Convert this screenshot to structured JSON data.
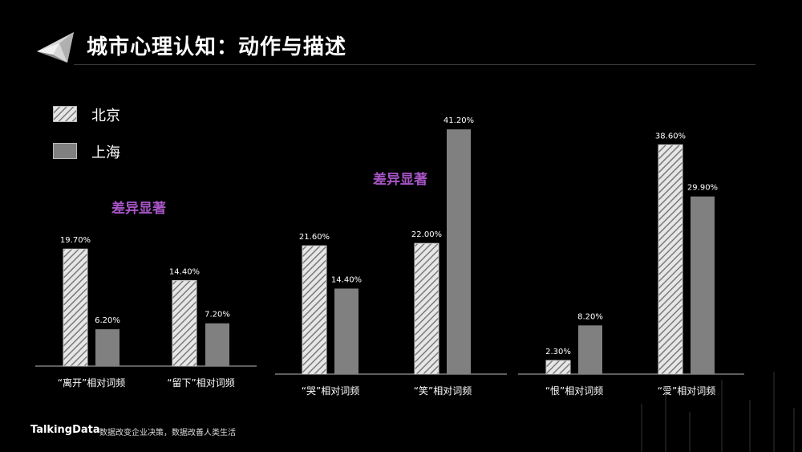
{
  "header": {
    "title": "城市心理认知：动作与描述",
    "logo_icon": "crystal-logo-icon"
  },
  "legend": [
    {
      "label": "北京",
      "pattern": "hatched"
    },
    {
      "label": "上海",
      "pattern": "solid"
    }
  ],
  "colors": {
    "background": "#000000",
    "shanghai_bar": "#808080",
    "hatch_bg": "#e6e6e6",
    "hatch_line": "#7a7a7a",
    "annotation": "#a855c8"
  },
  "chart_data": [
    {
      "type": "bar",
      "categories": [
        "“离开”相对词频",
        "“留下”相对词频"
      ],
      "series": [
        {
          "name": "北京",
          "values": [
            19.7,
            14.4
          ],
          "labels": [
            "19.70%",
            "14.40%"
          ]
        },
        {
          "name": "上海",
          "values": [
            6.2,
            7.2
          ],
          "labels": [
            "6.20%",
            "7.20%"
          ]
        }
      ],
      "annotation": "差异显著",
      "ylim": [
        0,
        45
      ],
      "unit": "%"
    },
    {
      "type": "bar",
      "categories": [
        "“哭”相对词频",
        "“笑”相对词频"
      ],
      "series": [
        {
          "name": "北京",
          "values": [
            21.6,
            22.0
          ],
          "labels": [
            "21.60%",
            "22.00%"
          ]
        },
        {
          "name": "上海",
          "values": [
            14.4,
            41.2
          ],
          "labels": [
            "14.40%",
            "41.20%"
          ]
        }
      ],
      "annotation": "差异显著",
      "ylim": [
        0,
        45
      ],
      "unit": "%"
    },
    {
      "type": "bar",
      "categories": [
        "“恨”相对词频",
        "“爱”相对词频"
      ],
      "series": [
        {
          "name": "北京",
          "values": [
            2.3,
            38.6
          ],
          "labels": [
            "2.30%",
            "38.60%"
          ]
        },
        {
          "name": "上海",
          "values": [
            8.2,
            29.9
          ],
          "labels": [
            "8.20%",
            "29.90%"
          ]
        }
      ],
      "annotation": "",
      "ylim": [
        0,
        45
      ],
      "unit": "%"
    }
  ],
  "footer": {
    "brand": "TalkingData",
    "slogan": "数据改变企业决策，数据改善人类生活"
  }
}
